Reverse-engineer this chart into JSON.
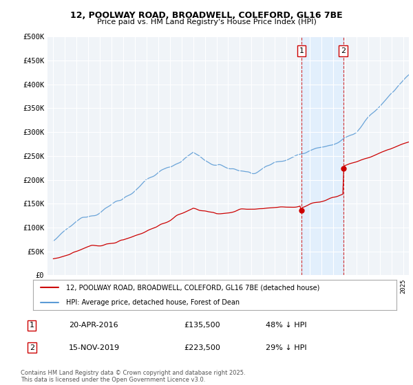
{
  "title": "12, POOLWAY ROAD, BROADWELL, COLEFORD, GL16 7BE",
  "subtitle": "Price paid vs. HM Land Registry's House Price Index (HPI)",
  "hpi_color": "#5b9bd5",
  "price_color": "#cc0000",
  "marker_color": "#cc0000",
  "vline_color": "#cc0000",
  "shade_color": "#ddeeff",
  "ylim": [
    0,
    500000
  ],
  "yticks": [
    0,
    50000,
    100000,
    150000,
    200000,
    250000,
    300000,
    350000,
    400000,
    450000,
    500000
  ],
  "ytick_labels": [
    "£0",
    "£50K",
    "£100K",
    "£150K",
    "£200K",
    "£250K",
    "£300K",
    "£350K",
    "£400K",
    "£450K",
    "£500K"
  ],
  "xlim_start": 1994.5,
  "xlim_end": 2025.5,
  "transaction1_x": 2016.29,
  "transaction1_y": 135500,
  "transaction1_label": "1",
  "transaction1_date": "20-APR-2016",
  "transaction1_price": "£135,500",
  "transaction1_note": "48% ↓ HPI",
  "transaction2_x": 2019.88,
  "transaction2_y": 223500,
  "transaction2_label": "2",
  "transaction2_date": "15-NOV-2019",
  "transaction2_price": "£223,500",
  "transaction2_note": "29% ↓ HPI",
  "legend_entry1": "12, POOLWAY ROAD, BROADWELL, COLEFORD, GL16 7BE (detached house)",
  "legend_entry2": "HPI: Average price, detached house, Forest of Dean",
  "footer_text": "Contains HM Land Registry data © Crown copyright and database right 2025.\nThis data is licensed under the Open Government Licence v3.0.",
  "background_color": "#f0f4f8"
}
